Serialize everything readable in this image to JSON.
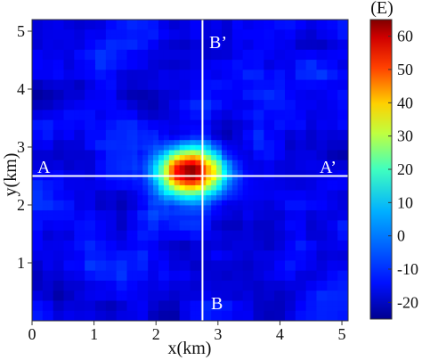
{
  "chart_data": {
    "type": "heatmap",
    "title": "",
    "xlabel": "x(km)",
    "ylabel": "y(km)",
    "xlim": [
      0,
      5.1
    ],
    "ylim": [
      0,
      5.2
    ],
    "x_ticks": [
      "0",
      "1",
      "2",
      "3",
      "4",
      "5"
    ],
    "y_ticks": [
      "1",
      "2",
      "3",
      "4",
      "5"
    ],
    "colorbar": {
      "label": "(E)",
      "range": [
        -25,
        65
      ],
      "ticks": [
        "-20",
        "-10",
        "0",
        "10",
        "20",
        "30",
        "40",
        "50",
        "60"
      ],
      "colormap": "jet"
    },
    "anomaly": {
      "center_x_km": 2.55,
      "center_y_km": 2.55,
      "peak_value": 62,
      "background_value": -15
    },
    "profiles": [
      {
        "start_label": "A",
        "end_label": "A’",
        "orientation": "horizontal",
        "y_km": 2.5
      },
      {
        "start_label": "B",
        "end_label": "B’",
        "orientation": "vertical",
        "x_km": 2.75
      }
    ],
    "grid": false
  }
}
